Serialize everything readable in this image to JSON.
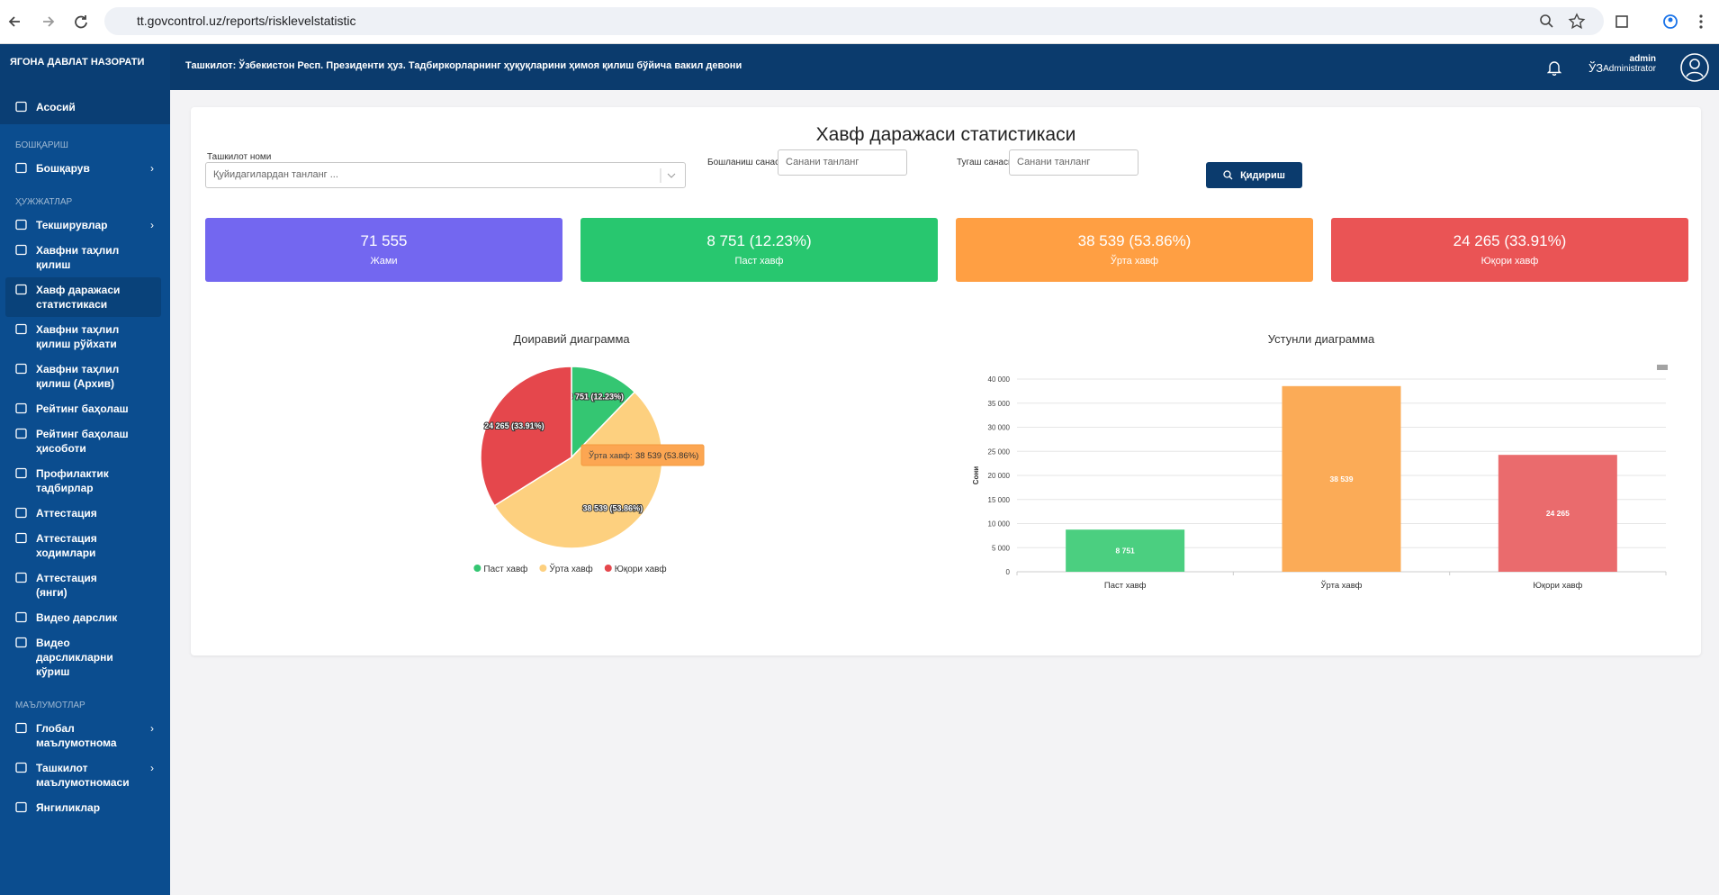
{
  "browser": {
    "url": "tt.govcontrol.uz/reports/risklevelstatistic"
  },
  "sidebar": {
    "brand": "ЯГОНА ДАВЛАТ НАЗОРАТИ",
    "groups": [
      {
        "items": [
          {
            "label": "Асосий"
          }
        ]
      },
      {
        "title": "БОШҚАРИШ",
        "items": [
          {
            "label": "Бошқарув",
            "arrow": true
          }
        ]
      },
      {
        "title": "ҲУЖЖАТЛАР",
        "items": [
          {
            "label": "Текширувлар",
            "arrow": true
          },
          {
            "label": "Хавфни таҳлил қилиш"
          },
          {
            "label": "Хавф даражаси статистикаси",
            "selected": true
          },
          {
            "label": "Хавфни таҳлил қилиш рўйхати"
          },
          {
            "label": "Хавфни таҳлил қилиш (Архив)"
          },
          {
            "label": "Рейтинг баҳолаш"
          },
          {
            "label": "Рейтинг баҳолаш ҳисоботи"
          },
          {
            "label": "Профилактик тадбирлар"
          },
          {
            "label": "Аттестация"
          },
          {
            "label": "Аттестация ходимлари"
          },
          {
            "label": "Аттестация (янги)"
          },
          {
            "label": "Видео дарслик"
          },
          {
            "label": "Видео дарсликларни кўриш"
          }
        ]
      },
      {
        "title": "МАЪЛУМОТЛАР",
        "items": [
          {
            "label": "Глобал маълумотнома",
            "arrow": true
          },
          {
            "label": "Ташкилот маълумотномаси",
            "arrow": true
          },
          {
            "label": "Янгиликлар"
          }
        ]
      }
    ]
  },
  "header": {
    "organization": "Ташкилот: Ўзбекистон Респ. Президенти ҳуз. Тадбиркорларнинг ҳуқуқларини ҳимоя қилиш бўйича вакил девони",
    "language": "ЎЗ",
    "user": "admin",
    "role": "Administrator"
  },
  "page": {
    "title": "Хавф даражаси статистикаси",
    "filters": {
      "organization_label": "Ташкилот номи",
      "organization_placeholder": "Қуйидагилардан танланг ...",
      "start_label": "Бошланиш санаси",
      "start_placeholder": "Санани танланг",
      "end_label": "Тугаш санаси",
      "end_placeholder": "Санани танланг",
      "button": "Қидириш"
    },
    "cards": [
      {
        "value": "71 555",
        "label": "Жами",
        "color": "#7367f0"
      },
      {
        "value": "8 751 (12.23%)",
        "label": "Паст хавф",
        "color": "#28c76f"
      },
      {
        "value": "38 539 (53.86%)",
        "label": "Ўрта хавф",
        "color": "#ff9f43"
      },
      {
        "value": "24 265 (33.91%)",
        "label": "Юқори хавф",
        "color": "#ea5455"
      }
    ]
  },
  "chart_data": [
    {
      "type": "pie",
      "title": "Доиравий диаграмма",
      "categories": [
        "Паст хавф",
        "Ўрта хавф",
        "Юқори хавф"
      ],
      "values": [
        8751,
        38539,
        24265
      ],
      "value_labels": [
        "8 751 (12.23%)",
        "38 539 (53.86%)",
        "24 265 (33.91%)"
      ],
      "colors": [
        "#34c672",
        "#fdd07f",
        "#e5474c"
      ],
      "legend": "bottom",
      "tooltip": {
        "name": "Ўрта хавф:",
        "value": "38 539 (53.86%)"
      }
    },
    {
      "type": "bar",
      "title": "Устунли диаграмма",
      "y_label": "Сони",
      "categories": [
        "Паст хавф",
        "Ўрта хавф",
        "Юқори хавф"
      ],
      "values": [
        8751,
        38539,
        24265
      ],
      "value_labels": [
        "8 751",
        "38 539",
        "24 265"
      ],
      "colors": [
        "#4bcf80",
        "#fbab57",
        "#ea6b6d"
      ],
      "ylim": [
        0,
        40000
      ],
      "yticks": [
        0,
        {
          "value": 5000,
          "label": "5 000"
        },
        {
          "value": 10000,
          "label": "10 000"
        },
        {
          "value": 15000,
          "label": "15 000"
        },
        {
          "value": 20000,
          "label": "20 000"
        },
        {
          "value": 25000,
          "label": "25 000"
        },
        {
          "value": 30000,
          "label": "30 000"
        },
        {
          "value": 35000,
          "label": "35 000"
        },
        {
          "value": 40000,
          "label": "40 000"
        }
      ],
      "grid": true
    }
  ]
}
